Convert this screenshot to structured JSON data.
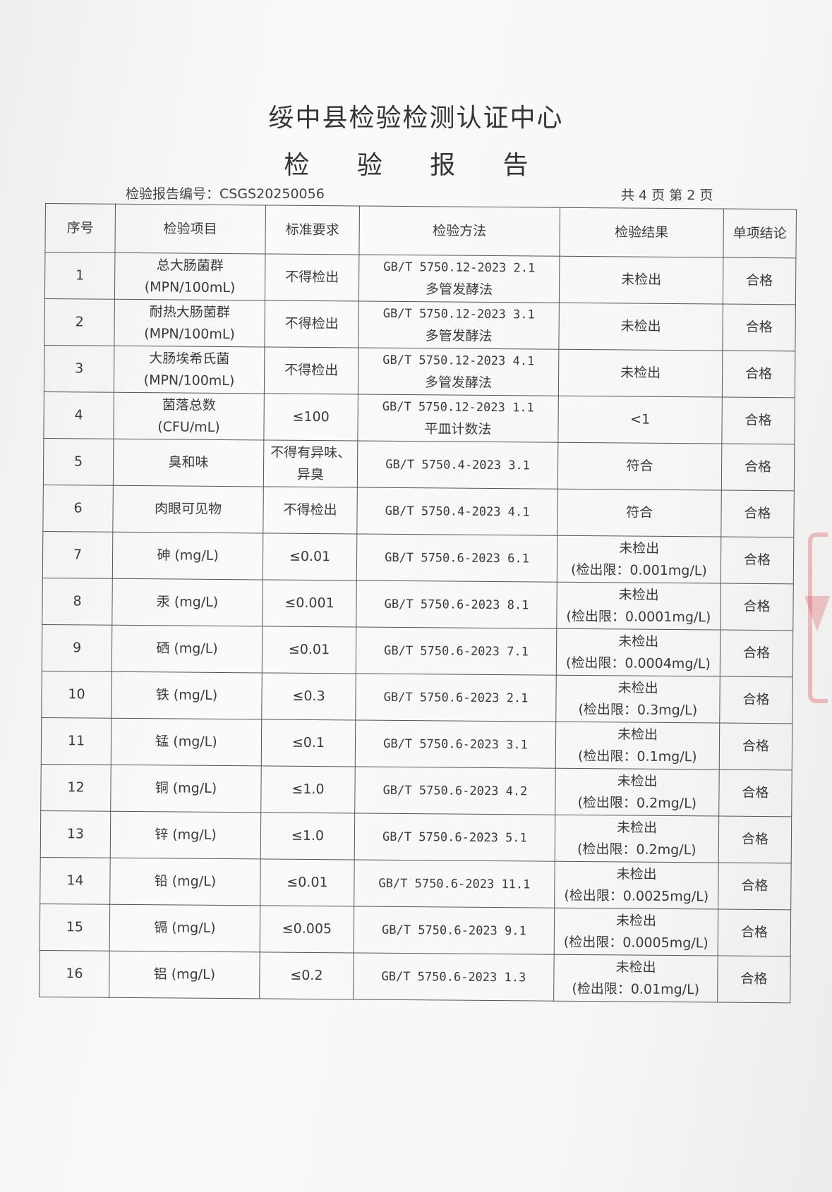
{
  "header": {
    "organization": "绥中县检验检测认证中心",
    "title": "检 验 报 告",
    "report_number": "检验报告编号：CSGS20250056",
    "page_info": "共 4 页  第 2 页"
  },
  "table": {
    "columns": [
      "序号",
      "检验项目",
      "标准要求",
      "检验方法",
      "检验结果",
      "单项结论"
    ],
    "rows": [
      {
        "no": "1",
        "item": "总大肠菌群",
        "item_unit": "(MPN/100mL)",
        "standard": "不得检出",
        "method": "GB/T 5750.12-2023  2.1",
        "method_note": "多管发酵法",
        "result": "未检出",
        "result_note": "",
        "conclusion": "合格"
      },
      {
        "no": "2",
        "item": "耐热大肠菌群",
        "item_unit": "(MPN/100mL)",
        "standard": "不得检出",
        "method": "GB/T 5750.12-2023  3.1",
        "method_note": "多管发酵法",
        "result": "未检出",
        "result_note": "",
        "conclusion": "合格"
      },
      {
        "no": "3",
        "item": "大肠埃希氏菌",
        "item_unit": "(MPN/100mL)",
        "standard": "不得检出",
        "method": "GB/T 5750.12-2023  4.1",
        "method_note": "多管发酵法",
        "result": "未检出",
        "result_note": "",
        "conclusion": "合格"
      },
      {
        "no": "4",
        "item": "菌落总数",
        "item_unit": "(CFU/mL)",
        "standard": "≤100",
        "method": "GB/T 5750.12-2023  1.1",
        "method_note": "平皿计数法",
        "result": "<1",
        "result_note": "",
        "conclusion": "合格"
      },
      {
        "no": "5",
        "item": "臭和味",
        "item_unit": "",
        "standard": "不得有异味、异臭",
        "method": "GB/T 5750.4-2023  3.1",
        "method_note": "",
        "result": "符合",
        "result_note": "",
        "conclusion": "合格"
      },
      {
        "no": "6",
        "item": "肉眼可见物",
        "item_unit": "",
        "standard": "不得检出",
        "method": "GB/T 5750.4-2023  4.1",
        "method_note": "",
        "result": "符合",
        "result_note": "",
        "conclusion": "合格"
      },
      {
        "no": "7",
        "item": "砷 (mg/L)",
        "item_unit": "",
        "standard": "≤0.01",
        "method": "GB/T 5750.6-2023  6.1",
        "method_note": "",
        "result": "未检出",
        "result_note": "(检出限：0.001mg/L)",
        "conclusion": "合格"
      },
      {
        "no": "8",
        "item": "汞 (mg/L)",
        "item_unit": "",
        "standard": "≤0.001",
        "method": "GB/T 5750.6-2023  8.1",
        "method_note": "",
        "result": "未检出",
        "result_note": "(检出限：0.0001mg/L)",
        "conclusion": "合格"
      },
      {
        "no": "9",
        "item": "硒 (mg/L)",
        "item_unit": "",
        "standard": "≤0.01",
        "method": "GB/T 5750.6-2023  7.1",
        "method_note": "",
        "result": "未检出",
        "result_note": "(检出限：0.0004mg/L)",
        "conclusion": "合格"
      },
      {
        "no": "10",
        "item": "铁 (mg/L)",
        "item_unit": "",
        "standard": "≤0.3",
        "method": "GB/T 5750.6-2023  2.1",
        "method_note": "",
        "result": "未检出",
        "result_note": "(检出限：0.3mg/L)",
        "conclusion": "合格"
      },
      {
        "no": "11",
        "item": "锰 (mg/L)",
        "item_unit": "",
        "standard": "≤0.1",
        "method": "GB/T 5750.6-2023  3.1",
        "method_note": "",
        "result": "未检出",
        "result_note": "(检出限：0.1mg/L)",
        "conclusion": "合格"
      },
      {
        "no": "12",
        "item": "铜 (mg/L)",
        "item_unit": "",
        "standard": "≤1.0",
        "method": "GB/T 5750.6-2023  4.2",
        "method_note": "",
        "result": "未检出",
        "result_note": "(检出限：0.2mg/L)",
        "conclusion": "合格"
      },
      {
        "no": "13",
        "item": "锌 (mg/L)",
        "item_unit": "",
        "standard": "≤1.0",
        "method": "GB/T 5750.6-2023  5.1",
        "method_note": "",
        "result": "未检出",
        "result_note": "(检出限：0.2mg/L)",
        "conclusion": "合格"
      },
      {
        "no": "14",
        "item": "铅 (mg/L)",
        "item_unit": "",
        "standard": "≤0.01",
        "method": "GB/T 5750.6-2023  11.1",
        "method_note": "",
        "result": "未检出",
        "result_note": "(检出限：0.0025mg/L)",
        "conclusion": "合格"
      },
      {
        "no": "15",
        "item": "镉 (mg/L)",
        "item_unit": "",
        "standard": "≤0.005",
        "method": "GB/T 5750.6-2023  9.1",
        "method_note": "",
        "result": "未检出",
        "result_note": "(检出限：0.0005mg/L)",
        "conclusion": "合格"
      },
      {
        "no": "16",
        "item": "铝 (mg/L)",
        "item_unit": "",
        "standard": "≤0.2",
        "method": "GB/T 5750.6-2023  1.3",
        "method_note": "",
        "result": "未检出",
        "result_note": "(检出限：0.01mg/L)",
        "conclusion": "合格"
      }
    ]
  },
  "colors": {
    "stamp": "#dc505a",
    "ink": "#3a3a3a"
  }
}
